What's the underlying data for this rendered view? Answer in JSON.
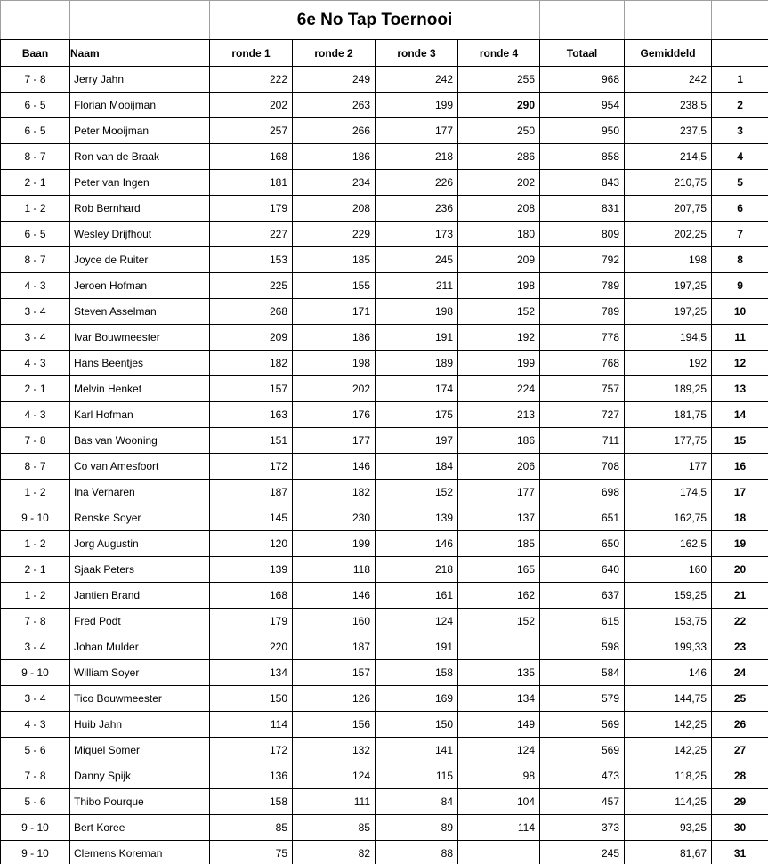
{
  "title": "6e No Tap Toernooi",
  "columns": {
    "baan": "Baan",
    "naam": "Naam",
    "r1": "ronde 1",
    "r2": "ronde 2",
    "r3": "ronde 3",
    "r4": "ronde 4",
    "totaal": "Totaal",
    "gemiddeld": "Gemiddeld",
    "rank": ""
  },
  "chart_data": {
    "type": "table",
    "title": "6e No Tap Toernooi",
    "column_order": [
      "baan",
      "naam",
      "r1",
      "r2",
      "r3",
      "r4",
      "totaal",
      "gemiddeld",
      "rank"
    ]
  },
  "rows": [
    {
      "baan": "7 - 8",
      "naam": "Jerry Jahn",
      "r1": "222",
      "r2": "249",
      "r3": "242",
      "r4": "255",
      "totaal": "968",
      "gemiddeld": "242",
      "rank": "1",
      "bold_r4": false
    },
    {
      "baan": "6 - 5",
      "naam": "Florian Mooijman",
      "r1": "202",
      "r2": "263",
      "r3": "199",
      "r4": "290",
      "totaal": "954",
      "gemiddeld": "238,5",
      "rank": "2",
      "bold_r4": true
    },
    {
      "baan": "6 - 5",
      "naam": "Peter Mooijman",
      "r1": "257",
      "r2": "266",
      "r3": "177",
      "r4": "250",
      "totaal": "950",
      "gemiddeld": "237,5",
      "rank": "3",
      "bold_r4": false
    },
    {
      "baan": "8 - 7",
      "naam": "Ron van de Braak",
      "r1": "168",
      "r2": "186",
      "r3": "218",
      "r4": "286",
      "totaal": "858",
      "gemiddeld": "214,5",
      "rank": "4",
      "bold_r4": false
    },
    {
      "baan": "2 - 1",
      "naam": "Peter van Ingen",
      "r1": "181",
      "r2": "234",
      "r3": "226",
      "r4": "202",
      "totaal": "843",
      "gemiddeld": "210,75",
      "rank": "5",
      "bold_r4": false
    },
    {
      "baan": "1 - 2",
      "naam": "Rob Bernhard",
      "r1": "179",
      "r2": "208",
      "r3": "236",
      "r4": "208",
      "totaal": "831",
      "gemiddeld": "207,75",
      "rank": "6",
      "bold_r4": false
    },
    {
      "baan": "6 - 5",
      "naam": "Wesley Drijfhout",
      "r1": "227",
      "r2": "229",
      "r3": "173",
      "r4": "180",
      "totaal": "809",
      "gemiddeld": "202,25",
      "rank": "7",
      "bold_r4": false
    },
    {
      "baan": "8 - 7",
      "naam": "Joyce de Ruiter",
      "r1": "153",
      "r2": "185",
      "r3": "245",
      "r4": "209",
      "totaal": "792",
      "gemiddeld": "198",
      "rank": "8",
      "bold_r4": false
    },
    {
      "baan": "4 - 3",
      "naam": "Jeroen Hofman",
      "r1": "225",
      "r2": "155",
      "r3": "211",
      "r4": "198",
      "totaal": "789",
      "gemiddeld": "197,25",
      "rank": "9",
      "bold_r4": false
    },
    {
      "baan": "3 - 4",
      "naam": "Steven Asselman",
      "r1": "268",
      "r2": "171",
      "r3": "198",
      "r4": "152",
      "totaal": "789",
      "gemiddeld": "197,25",
      "rank": "10",
      "bold_r4": false
    },
    {
      "baan": "3 - 4",
      "naam": "Ivar Bouwmeester",
      "r1": "209",
      "r2": "186",
      "r3": "191",
      "r4": "192",
      "totaal": "778",
      "gemiddeld": "194,5",
      "rank": "11",
      "bold_r4": false
    },
    {
      "baan": "4 - 3",
      "naam": "Hans Beentjes",
      "r1": "182",
      "r2": "198",
      "r3": "189",
      "r4": "199",
      "totaal": "768",
      "gemiddeld": "192",
      "rank": "12",
      "bold_r4": false
    },
    {
      "baan": "2 - 1",
      "naam": "Melvin Henket",
      "r1": "157",
      "r2": "202",
      "r3": "174",
      "r4": "224",
      "totaal": "757",
      "gemiddeld": "189,25",
      "rank": "13",
      "bold_r4": false
    },
    {
      "baan": "4 - 3",
      "naam": "Karl Hofman",
      "r1": "163",
      "r2": "176",
      "r3": "175",
      "r4": "213",
      "totaal": "727",
      "gemiddeld": "181,75",
      "rank": "14",
      "bold_r4": false
    },
    {
      "baan": "7 - 8",
      "naam": "Bas van Wooning",
      "r1": "151",
      "r2": "177",
      "r3": "197",
      "r4": "186",
      "totaal": "711",
      "gemiddeld": "177,75",
      "rank": "15",
      "bold_r4": false
    },
    {
      "baan": "8 - 7",
      "naam": "Co van Amesfoort",
      "r1": "172",
      "r2": "146",
      "r3": "184",
      "r4": "206",
      "totaal": "708",
      "gemiddeld": "177",
      "rank": "16",
      "bold_r4": false
    },
    {
      "baan": "1 - 2",
      "naam": "Ina Verharen",
      "r1": "187",
      "r2": "182",
      "r3": "152",
      "r4": "177",
      "totaal": "698",
      "gemiddeld": "174,5",
      "rank": "17",
      "bold_r4": false
    },
    {
      "baan": "9 - 10",
      "naam": "Renske Soyer",
      "r1": "145",
      "r2": "230",
      "r3": "139",
      "r4": "137",
      "totaal": "651",
      "gemiddeld": "162,75",
      "rank": "18",
      "bold_r4": false
    },
    {
      "baan": "1 - 2",
      "naam": "Jorg Augustin",
      "r1": "120",
      "r2": "199",
      "r3": "146",
      "r4": "185",
      "totaal": "650",
      "gemiddeld": "162,5",
      "rank": "19",
      "bold_r4": false
    },
    {
      "baan": "2 - 1",
      "naam": "Sjaak Peters",
      "r1": "139",
      "r2": "118",
      "r3": "218",
      "r4": "165",
      "totaal": "640",
      "gemiddeld": "160",
      "rank": "20",
      "bold_r4": false
    },
    {
      "baan": "1 - 2",
      "naam": "Jantien Brand",
      "r1": "168",
      "r2": "146",
      "r3": "161",
      "r4": "162",
      "totaal": "637",
      "gemiddeld": "159,25",
      "rank": "21",
      "bold_r4": false
    },
    {
      "baan": "7 - 8",
      "naam": "Fred Podt",
      "r1": "179",
      "r2": "160",
      "r3": "124",
      "r4": "152",
      "totaal": "615",
      "gemiddeld": "153,75",
      "rank": "22",
      "bold_r4": false
    },
    {
      "baan": "3 - 4",
      "naam": "Johan Mulder",
      "r1": "220",
      "r2": "187",
      "r3": "191",
      "r4": "",
      "totaal": "598",
      "gemiddeld": "199,33",
      "rank": "23",
      "bold_r4": false
    },
    {
      "baan": "9 - 10",
      "naam": "William Soyer",
      "r1": "134",
      "r2": "157",
      "r3": "158",
      "r4": "135",
      "totaal": "584",
      "gemiddeld": "146",
      "rank": "24",
      "bold_r4": false
    },
    {
      "baan": "3 - 4",
      "naam": "Tico Bouwmeester",
      "r1": "150",
      "r2": "126",
      "r3": "169",
      "r4": "134",
      "totaal": "579",
      "gemiddeld": "144,75",
      "rank": "25",
      "bold_r4": false
    },
    {
      "baan": "4 - 3",
      "naam": "Huib Jahn",
      "r1": "114",
      "r2": "156",
      "r3": "150",
      "r4": "149",
      "totaal": "569",
      "gemiddeld": "142,25",
      "rank": "26",
      "bold_r4": false
    },
    {
      "baan": "5 - 6",
      "naam": "Miquel Somer",
      "r1": "172",
      "r2": "132",
      "r3": "141",
      "r4": "124",
      "totaal": "569",
      "gemiddeld": "142,25",
      "rank": "27",
      "bold_r4": false
    },
    {
      "baan": "7 - 8",
      "naam": "Danny Spijk",
      "r1": "136",
      "r2": "124",
      "r3": "115",
      "r4": "98",
      "totaal": "473",
      "gemiddeld": "118,25",
      "rank": "28",
      "bold_r4": false
    },
    {
      "baan": "5 - 6",
      "naam": "Thibo Pourque",
      "r1": "158",
      "r2": "111",
      "r3": "84",
      "r4": "104",
      "totaal": "457",
      "gemiddeld": "114,25",
      "rank": "29",
      "bold_r4": false
    },
    {
      "baan": "9 - 10",
      "naam": "Bert Koree",
      "r1": "85",
      "r2": "85",
      "r3": "89",
      "r4": "114",
      "totaal": "373",
      "gemiddeld": "93,25",
      "rank": "30",
      "bold_r4": false
    },
    {
      "baan": "9 - 10",
      "naam": "Clemens Koreman",
      "r1": "75",
      "r2": "82",
      "r3": "88",
      "r4": "",
      "totaal": "245",
      "gemiddeld": "81,67",
      "rank": "31",
      "bold_r4": false
    }
  ],
  "colors": {
    "border": "#000000",
    "gridline": "#9f9f9f",
    "text": "#000000",
    "background": "#ffffff"
  }
}
